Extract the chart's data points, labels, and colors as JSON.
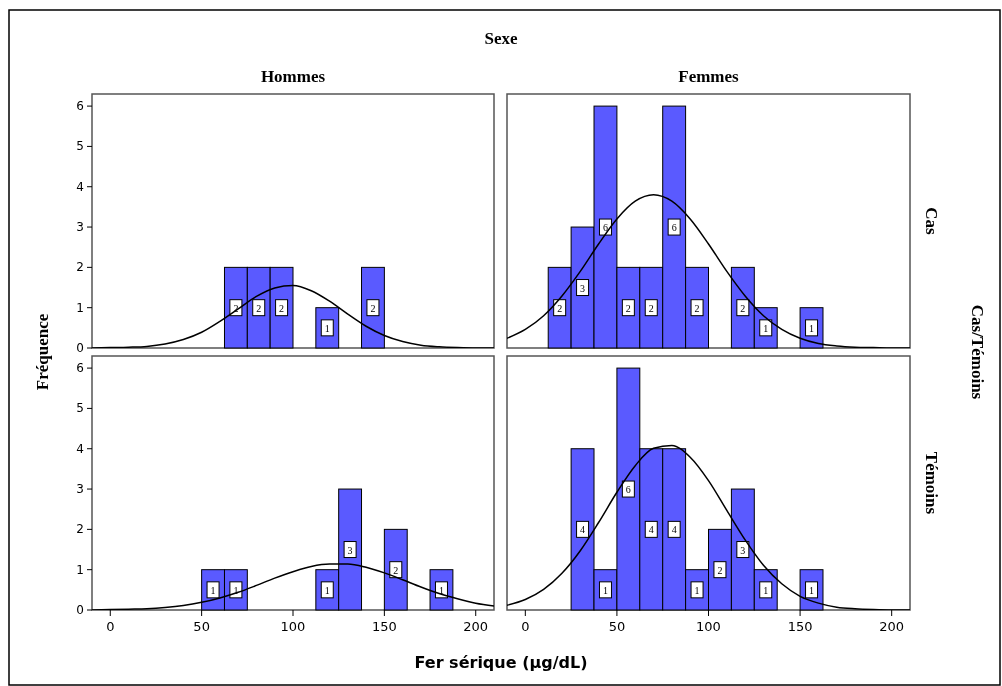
{
  "chart_data": [
    {
      "type": "histogram",
      "title": "Hommes",
      "ylabel": "Fréquence",
      "annotations": [
        "Sexe"
      ],
      "bins": [
        62.5,
        75,
        87.5,
        100,
        112.5,
        125,
        137.5,
        150
      ],
      "values": [
        2,
        2,
        2,
        0,
        1,
        0,
        2
      ],
      "value_labels": [
        "2",
        "2",
        "2",
        null,
        "1",
        null,
        "2"
      ],
      "color": "#5a5aff",
      "xlim": [
        -10,
        210
      ],
      "ylim": [
        0,
        6.3
      ],
      "yticks": [
        0,
        1,
        2,
        3,
        4,
        5,
        6
      ],
      "tick_labels": "y",
      "series": [
        {
          "type": "line",
          "color": "#000000",
          "x": [
            -10,
            0,
            10,
            20,
            30,
            40,
            50,
            60,
            70,
            80,
            90,
            100,
            110,
            120,
            130,
            140,
            150,
            160,
            170,
            180,
            190,
            200,
            210
          ],
          "values": [
            0,
            0.01,
            0.02,
            0.04,
            0.1,
            0.21,
            0.39,
            0.66,
            0.97,
            1.28,
            1.49,
            1.55,
            1.42,
            1.16,
            0.84,
            0.54,
            0.31,
            0.16,
            0.07,
            0.03,
            0.01,
            0,
            0
          ]
        }
      ]
    },
    {
      "type": "histogram",
      "title": "Femmes",
      "y2label": "Cas",
      "annotations": [
        "Cas/Témoins"
      ],
      "bins": [
        12.5,
        25,
        37.5,
        50,
        62.5,
        75,
        87.5,
        100,
        112.5,
        125,
        137.5,
        150,
        162.5
      ],
      "values": [
        2,
        3,
        6,
        2,
        2,
        6,
        2,
        0,
        2,
        1,
        0,
        1
      ],
      "value_labels": [
        "2",
        "3",
        "6",
        "2",
        "2",
        "6",
        "2",
        null,
        "2",
        "1",
        null,
        "1"
      ],
      "color": "#5a5aff",
      "xlim": [
        -10,
        210
      ],
      "ylim": [
        0,
        6.3
      ],
      "tick_labels": false,
      "series": [
        {
          "type": "line",
          "color": "#000000",
          "x": [
            -10,
            0,
            10,
            20,
            30,
            40,
            50,
            60,
            70,
            80,
            90,
            100,
            110,
            120,
            130,
            140,
            150,
            160,
            170,
            180,
            190,
            200,
            210
          ],
          "values": [
            0.24,
            0.46,
            0.8,
            1.29,
            1.9,
            2.58,
            3.2,
            3.64,
            3.8,
            3.64,
            3.2,
            2.58,
            1.9,
            1.29,
            0.8,
            0.46,
            0.24,
            0.11,
            0.05,
            0.02,
            0.01,
            0,
            0
          ]
        }
      ]
    },
    {
      "type": "histogram",
      "xlabel": "Fer sérique (µg/dL)",
      "bins": [
        50,
        62.5,
        75,
        87.5,
        100,
        112.5,
        125,
        137.5,
        150,
        162.5,
        175,
        187.5
      ],
      "values": [
        1,
        1,
        0,
        0,
        0,
        1,
        3,
        0,
        2,
        0,
        1
      ],
      "value_labels": [
        "1",
        "1",
        null,
        null,
        null,
        "1",
        "3",
        null,
        "2",
        null,
        "1"
      ],
      "color": "#5a5aff",
      "xlim": [
        -10,
        210
      ],
      "xticks": [
        0,
        50,
        100,
        150,
        200
      ],
      "ylim": [
        0,
        6.3
      ],
      "yticks": [
        0,
        1,
        2,
        3,
        4,
        5,
        6
      ],
      "series": [
        {
          "type": "line",
          "color": "#000000",
          "x": [
            -10,
            0,
            10,
            20,
            30,
            40,
            50,
            60,
            70,
            80,
            90,
            100,
            110,
            120,
            130,
            140,
            150,
            160,
            170,
            180,
            190,
            200,
            210
          ],
          "values": [
            0,
            0.01,
            0.02,
            0.03,
            0.06,
            0.11,
            0.19,
            0.3,
            0.44,
            0.61,
            0.79,
            0.95,
            1.08,
            1.14,
            1.14,
            1.06,
            0.92,
            0.75,
            0.57,
            0.41,
            0.28,
            0.17,
            0.1
          ]
        }
      ]
    },
    {
      "type": "histogram",
      "y2label": "Témoins",
      "bins": [
        25,
        37.5,
        50,
        62.5,
        75,
        87.5,
        100,
        112.5,
        125,
        137.5,
        150,
        162.5
      ],
      "values": [
        4,
        1,
        6,
        4,
        4,
        1,
        2,
        3,
        1,
        0,
        1
      ],
      "value_labels": [
        "4",
        "1",
        "6",
        "4",
        "4",
        "1",
        "2",
        "3",
        "1",
        null,
        "1"
      ],
      "color": "#5a5aff",
      "xlim": [
        -10,
        210
      ],
      "xticks": [
        0,
        50,
        100,
        150,
        200
      ],
      "ylim": [
        0,
        6.3
      ],
      "tick_labels": "x",
      "series": [
        {
          "type": "line",
          "color": "#000000",
          "x": [
            -10,
            0,
            10,
            20,
            30,
            40,
            50,
            60,
            70,
            80,
            90,
            100,
            110,
            120,
            130,
            140,
            150,
            160,
            170,
            180,
            190,
            200,
            210
          ],
          "values": [
            0.12,
            0.26,
            0.51,
            0.91,
            1.47,
            2.17,
            2.92,
            3.58,
            4.01,
            4.08,
            3.79,
            3.21,
            2.47,
            1.74,
            1.11,
            0.65,
            0.34,
            0.17,
            0.07,
            0.03,
            0.01,
            0,
            0
          ]
        }
      ]
    }
  ]
}
